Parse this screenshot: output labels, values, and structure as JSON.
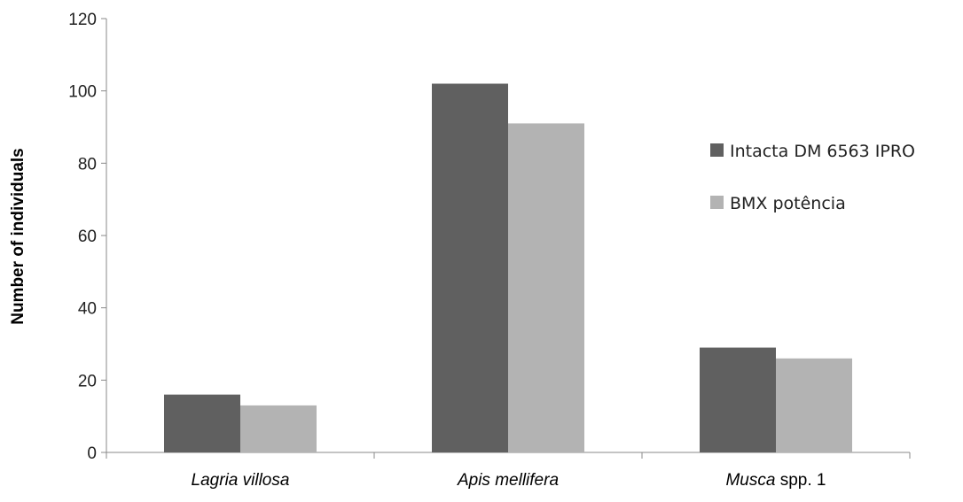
{
  "chart_data": {
    "type": "bar",
    "categories": [
      {
        "italic": "Lagria villosa",
        "rest": ""
      },
      {
        "italic": "Apis mellifera",
        "rest": ""
      },
      {
        "italic": "Musca",
        "rest": " spp. 1"
      }
    ],
    "series": [
      {
        "name": "Intacta DM 6563 IPRO",
        "values": [
          16,
          102,
          29
        ],
        "color": "#606060"
      },
      {
        "name": "BMX potência",
        "values": [
          13,
          91,
          26
        ],
        "color": "#b3b3b3"
      }
    ],
    "ylabel": "Number of individuals",
    "ylim": [
      0,
      120
    ],
    "yticks": [
      0,
      20,
      40,
      60,
      80,
      100,
      120
    ],
    "grid": false,
    "legend_position": "right"
  }
}
